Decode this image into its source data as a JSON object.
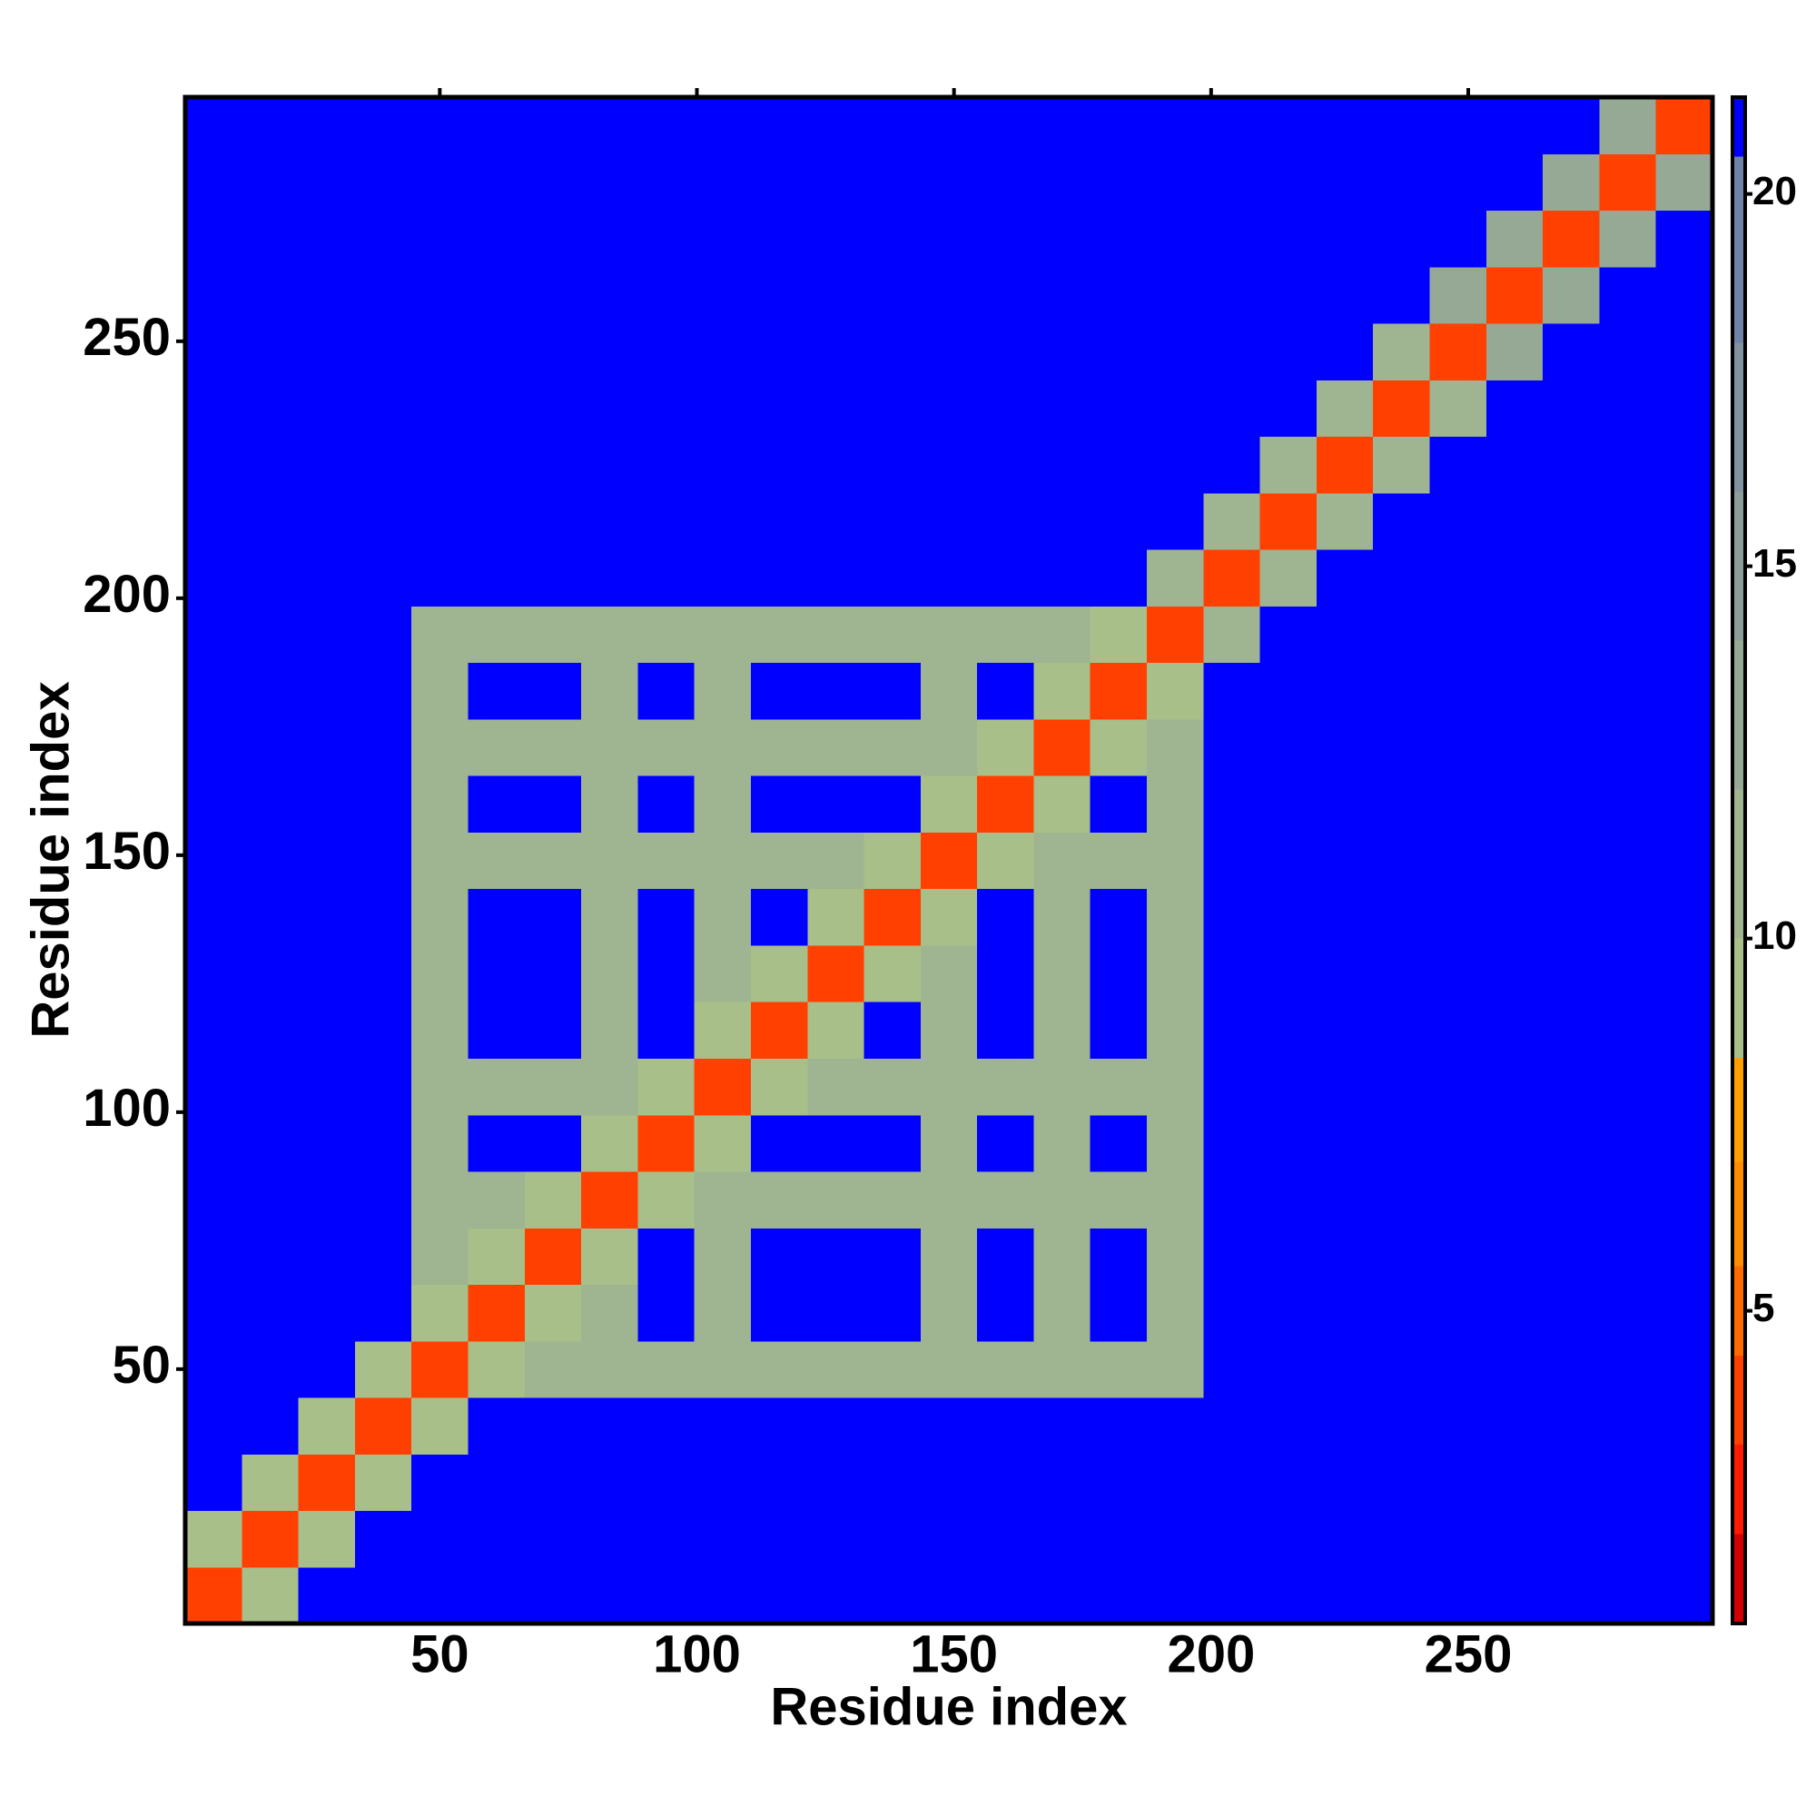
{
  "chart_data": {
    "type": "heatmap",
    "x_label": "Residue index",
    "y_label": "Residue index",
    "x": [
      6,
      17,
      28,
      39,
      50,
      61,
      72,
      83,
      94,
      105,
      116,
      127,
      138,
      149,
      160,
      171,
      182,
      193,
      204,
      215,
      226,
      237,
      248,
      259,
      270,
      281,
      292
    ],
    "y": [
      6,
      17,
      28,
      39,
      50,
      61,
      72,
      83,
      94,
      105,
      116,
      127,
      138,
      149,
      160,
      171,
      182,
      193,
      204,
      215,
      226,
      237,
      248,
      259,
      270,
      281,
      292
    ],
    "values": [
      [
        3.5,
        9,
        21,
        21,
        21,
        21,
        21,
        21,
        21,
        21,
        21,
        21,
        21,
        21,
        21,
        21,
        21,
        21,
        21,
        21,
        21,
        21,
        21,
        21,
        21,
        21,
        21
      ],
      [
        9,
        3.5,
        9,
        21,
        21,
        21,
        21,
        21,
        21,
        21,
        21,
        21,
        21,
        21,
        21,
        21,
        21,
        21,
        21,
        21,
        21,
        21,
        21,
        21,
        21,
        21,
        21
      ],
      [
        21,
        9,
        3.5,
        9,
        21,
        21,
        21,
        21,
        21,
        21,
        21,
        21,
        21,
        21,
        21,
        21,
        21,
        21,
        21,
        21,
        21,
        21,
        21,
        21,
        21,
        21,
        21
      ],
      [
        21,
        21,
        9,
        3.5,
        9,
        21,
        21,
        21,
        21,
        21,
        21,
        21,
        21,
        21,
        21,
        21,
        21,
        21,
        21,
        21,
        21,
        21,
        21,
        21,
        21,
        21,
        21
      ],
      [
        21,
        21,
        21,
        9,
        3.5,
        9,
        11,
        11,
        11,
        11,
        11,
        11,
        11,
        11,
        11,
        11,
        11,
        11,
        21,
        21,
        21,
        21,
        21,
        21,
        21,
        21,
        21
      ],
      [
        21,
        21,
        21,
        21,
        9,
        3.5,
        9,
        11,
        21,
        11,
        21,
        21,
        21,
        11,
        21,
        11,
        21,
        11,
        21,
        21,
        21,
        21,
        21,
        21,
        21,
        21,
        21
      ],
      [
        21,
        21,
        21,
        21,
        11,
        9,
        3.5,
        9,
        21,
        11,
        21,
        21,
        21,
        11,
        21,
        11,
        21,
        11,
        21,
        21,
        21,
        21,
        21,
        21,
        21,
        21,
        21
      ],
      [
        21,
        21,
        21,
        21,
        11,
        11,
        9,
        3.5,
        9,
        11,
        11,
        11,
        11,
        11,
        11,
        11,
        11,
        11,
        21,
        21,
        21,
        21,
        21,
        21,
        21,
        21,
        21
      ],
      [
        21,
        21,
        21,
        21,
        11,
        21,
        21,
        9,
        3.5,
        9,
        21,
        21,
        21,
        11,
        21,
        11,
        21,
        11,
        21,
        21,
        21,
        21,
        21,
        21,
        21,
        21,
        21
      ],
      [
        21,
        21,
        21,
        21,
        11,
        11,
        11,
        11,
        9,
        3.5,
        9,
        11,
        11,
        11,
        11,
        11,
        11,
        11,
        21,
        21,
        21,
        21,
        21,
        21,
        21,
        21,
        21
      ],
      [
        21,
        21,
        21,
        21,
        11,
        21,
        21,
        11,
        21,
        9,
        3.5,
        9,
        21,
        11,
        21,
        11,
        21,
        11,
        21,
        21,
        21,
        21,
        21,
        21,
        21,
        21,
        21
      ],
      [
        21,
        21,
        21,
        21,
        11,
        21,
        21,
        11,
        21,
        11,
        9,
        3.5,
        9,
        11,
        21,
        11,
        21,
        11,
        21,
        21,
        21,
        21,
        21,
        21,
        21,
        21,
        21
      ],
      [
        21,
        21,
        21,
        21,
        11,
        21,
        21,
        11,
        21,
        11,
        21,
        9,
        3.5,
        9,
        21,
        11,
        21,
        11,
        21,
        21,
        21,
        21,
        21,
        21,
        21,
        21,
        21
      ],
      [
        21,
        21,
        21,
        21,
        11,
        11,
        11,
        11,
        11,
        11,
        11,
        11,
        9,
        3.5,
        9,
        11,
        11,
        11,
        21,
        21,
        21,
        21,
        21,
        21,
        21,
        21,
        21
      ],
      [
        21,
        21,
        21,
        21,
        11,
        21,
        21,
        11,
        21,
        11,
        21,
        21,
        21,
        9,
        3.5,
        9,
        21,
        11,
        21,
        21,
        21,
        21,
        21,
        21,
        21,
        21,
        21
      ],
      [
        21,
        21,
        21,
        21,
        11,
        11,
        11,
        11,
        11,
        11,
        11,
        11,
        11,
        11,
        9,
        3.5,
        9,
        11,
        21,
        21,
        21,
        21,
        21,
        21,
        21,
        21,
        21
      ],
      [
        21,
        21,
        21,
        21,
        11,
        21,
        21,
        11,
        21,
        11,
        21,
        21,
        21,
        11,
        21,
        9,
        3.5,
        9,
        21,
        21,
        21,
        21,
        21,
        21,
        21,
        21,
        21
      ],
      [
        21,
        21,
        21,
        21,
        11,
        11,
        11,
        11,
        11,
        11,
        11,
        11,
        11,
        11,
        11,
        11,
        9,
        3.5,
        11,
        21,
        21,
        21,
        21,
        21,
        21,
        21,
        21
      ],
      [
        21,
        21,
        21,
        21,
        21,
        21,
        21,
        21,
        21,
        21,
        21,
        21,
        21,
        21,
        21,
        21,
        21,
        11,
        3.5,
        11,
        21,
        21,
        21,
        21,
        21,
        21,
        21
      ],
      [
        21,
        21,
        21,
        21,
        21,
        21,
        21,
        21,
        21,
        21,
        21,
        21,
        21,
        21,
        21,
        21,
        21,
        21,
        11,
        3.5,
        11,
        21,
        21,
        21,
        21,
        21,
        21
      ],
      [
        21,
        21,
        21,
        21,
        21,
        21,
        21,
        21,
        21,
        21,
        21,
        21,
        21,
        21,
        21,
        21,
        21,
        21,
        21,
        11,
        3.5,
        11,
        21,
        21,
        21,
        21,
        21
      ],
      [
        21,
        21,
        21,
        21,
        21,
        21,
        21,
        21,
        21,
        21,
        21,
        21,
        21,
        21,
        21,
        21,
        21,
        21,
        21,
        21,
        11,
        3.5,
        11,
        21,
        21,
        21,
        21
      ],
      [
        21,
        21,
        21,
        21,
        21,
        21,
        21,
        21,
        21,
        21,
        21,
        21,
        21,
        21,
        21,
        21,
        21,
        21,
        21,
        21,
        21,
        11,
        3.5,
        13,
        21,
        21,
        21
      ],
      [
        21,
        21,
        21,
        21,
        21,
        21,
        21,
        21,
        21,
        21,
        21,
        21,
        21,
        21,
        21,
        21,
        21,
        21,
        21,
        21,
        21,
        21,
        13,
        3.5,
        13,
        21,
        21
      ],
      [
        21,
        21,
        21,
        21,
        21,
        21,
        21,
        21,
        21,
        21,
        21,
        21,
        21,
        21,
        21,
        21,
        21,
        21,
        21,
        21,
        21,
        21,
        21,
        13,
        3.5,
        13,
        21
      ],
      [
        21,
        21,
        21,
        21,
        21,
        21,
        21,
        21,
        21,
        21,
        21,
        21,
        21,
        21,
        21,
        21,
        21,
        21,
        21,
        21,
        21,
        21,
        21,
        21,
        13,
        3.5,
        13
      ],
      [
        21,
        21,
        21,
        21,
        21,
        21,
        21,
        21,
        21,
        21,
        21,
        21,
        21,
        21,
        21,
        21,
        21,
        21,
        21,
        21,
        21,
        21,
        21,
        21,
        21,
        13,
        3.5
      ]
    ],
    "xlim": [
      0.5,
      297.5
    ],
    "ylim": [
      0.5,
      297.5
    ],
    "xticks": [
      50,
      100,
      150,
      200,
      250
    ],
    "yticks": [
      50,
      100,
      150,
      200,
      250
    ],
    "clim": [
      0.8,
      21.3
    ],
    "cticks": [
      5,
      10,
      15,
      20
    ],
    "levels": [
      0.8,
      2,
      3.2,
      4.4,
      5.6,
      7,
      8.4,
      10,
      12,
      14,
      16,
      18,
      20.5,
      21.3
    ],
    "colors": [
      "#d40000",
      "#ff1a00",
      "#ff4000",
      "#ff6a00",
      "#ff8c00",
      "#ffa000",
      "#a8bf8a",
      "#9fb490",
      "#95a994",
      "#8c9e9a",
      "#8193a0",
      "#6f82a8",
      "#0000ff"
    ]
  }
}
